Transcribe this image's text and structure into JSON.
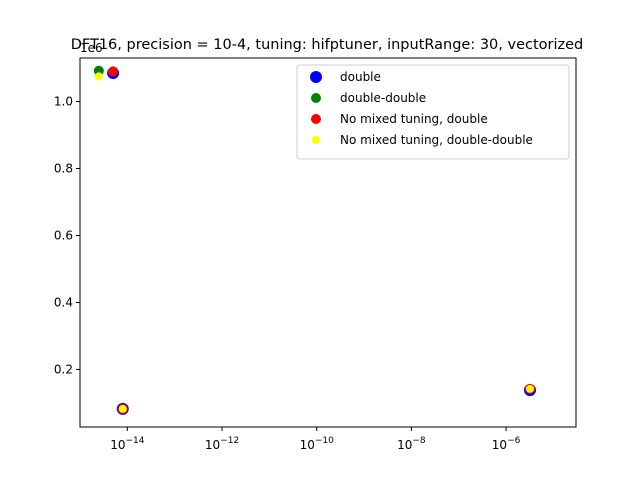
{
  "chart_data": {
    "type": "scatter",
    "title": "DFT16, precision = 10-4, tuning: hifptuner, inputRange: 30, vectorized",
    "xlabel": "",
    "ylabel": "",
    "xscale": "log",
    "xlim": [
      1e-15,
      3e-05
    ],
    "ylim": [
      0.028,
      1.13
    ],
    "y_offset_label": "1e6",
    "x_ticks": [
      {
        "value": 1e-14,
        "label": "10",
        "exp": "−14"
      },
      {
        "value": 1e-12,
        "label": "10",
        "exp": "−12"
      },
      {
        "value": 1e-10,
        "label": "10",
        "exp": "−10"
      },
      {
        "value": 1e-08,
        "label": "10",
        "exp": "−8"
      },
      {
        "value": 1e-06,
        "label": "10",
        "exp": "−6"
      }
    ],
    "y_ticks": [
      {
        "value": 0.2,
        "label": "0.2"
      },
      {
        "value": 0.4,
        "label": "0.4"
      },
      {
        "value": 0.6,
        "label": "0.6"
      },
      {
        "value": 0.8,
        "label": "0.8"
      },
      {
        "value": 1.0,
        "label": "1.0"
      }
    ],
    "legend_position": "top-right",
    "grid": false,
    "series": [
      {
        "name": "double",
        "color": "#0000ff",
        "marker_size": "large",
        "points": [
          {
            "x": 5e-15,
            "y": 1.085
          },
          {
            "x": 8e-15,
            "y": 0.082
          },
          {
            "x": 3.2e-06,
            "y": 0.138
          }
        ]
      },
      {
        "name": "double-double",
        "color": "#008000",
        "marker_size": "medium",
        "points": [
          {
            "x": 2.5e-15,
            "y": 1.092
          }
        ]
      },
      {
        "name": "No mixed tuning, double",
        "color": "#ff0000",
        "marker_size": "medium",
        "points": [
          {
            "x": 5e-15,
            "y": 1.09
          },
          {
            "x": 8e-15,
            "y": 0.082
          },
          {
            "x": 3.2e-06,
            "y": 0.142
          }
        ]
      },
      {
        "name": "No mixed tuning, double-double",
        "color": "#ffff00",
        "marker_size": "small",
        "points": [
          {
            "x": 2.5e-15,
            "y": 1.075
          },
          {
            "x": 8e-15,
            "y": 0.082
          },
          {
            "x": 3.2e-06,
            "y": 0.142
          }
        ]
      }
    ]
  }
}
